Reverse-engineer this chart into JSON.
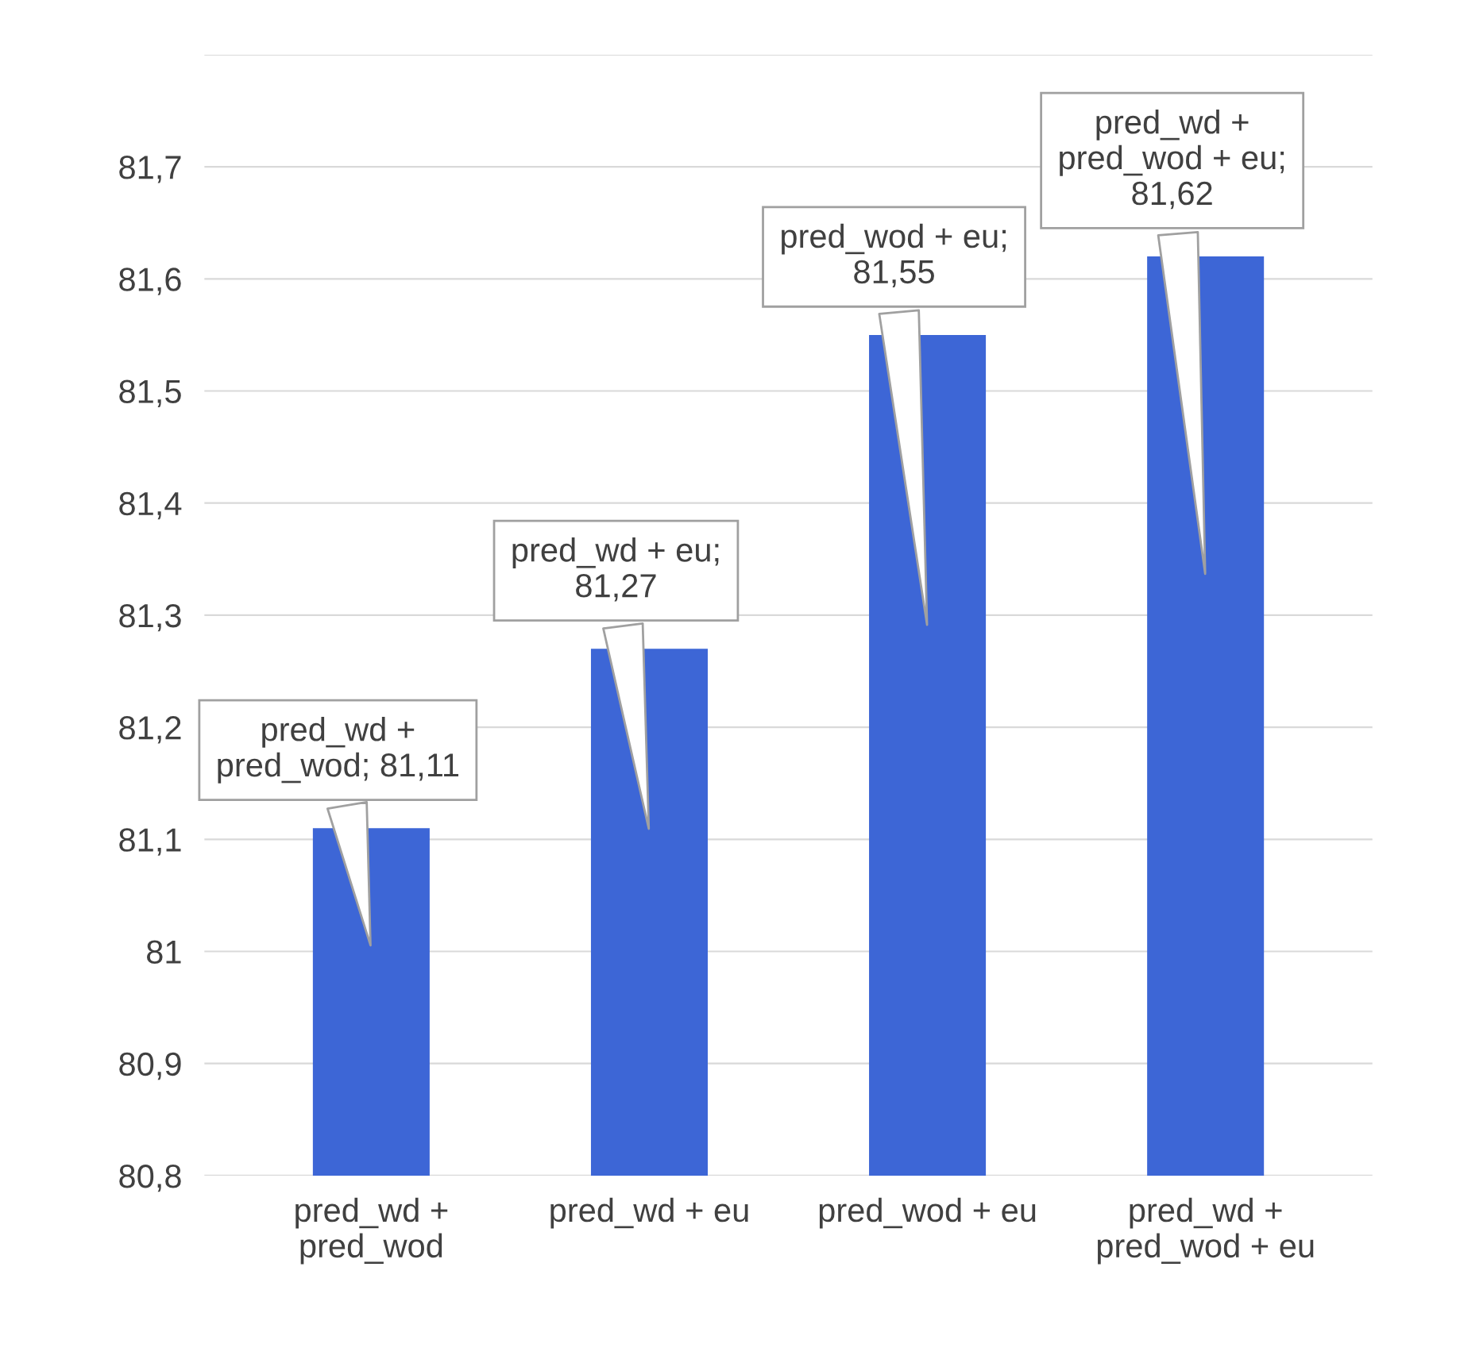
{
  "chart_data": {
    "type": "bar",
    "categories": [
      "pred_wd +\npred_wod",
      "pred_wd + eu",
      "pred_wod + eu",
      "pred_wd +\npred_wod + eu"
    ],
    "values": [
      81.11,
      81.27,
      81.55,
      81.62
    ],
    "color": "#3d66d6",
    "value_labels": [
      "pred_wd +\npred_wod; 81,11",
      "pred_wd + eu;\n81,27",
      "pred_wod + eu;\n81,55",
      "pred_wd +\npred_wod + eu;\n81,62"
    ],
    "ylim": [
      80.8,
      81.8
    ],
    "yticks": [
      {
        "value": 80.8,
        "label": "80,8"
      },
      {
        "value": 80.9,
        "label": "80,9"
      },
      81,
      {
        "value": 81.1,
        "label": "81,1"
      },
      {
        "value": 81.2,
        "label": "81,2"
      },
      {
        "value": 81.3,
        "label": "81,3"
      },
      {
        "value": 81.4,
        "label": "81,4"
      },
      {
        "value": 81.5,
        "label": "81,5"
      },
      {
        "value": 81.6,
        "label": "81,6"
      },
      {
        "value": 81.7,
        "label": "81,7"
      },
      {
        "value": 81.8,
        "label": null
      }
    ],
    "grid": "y",
    "legend": false
  }
}
